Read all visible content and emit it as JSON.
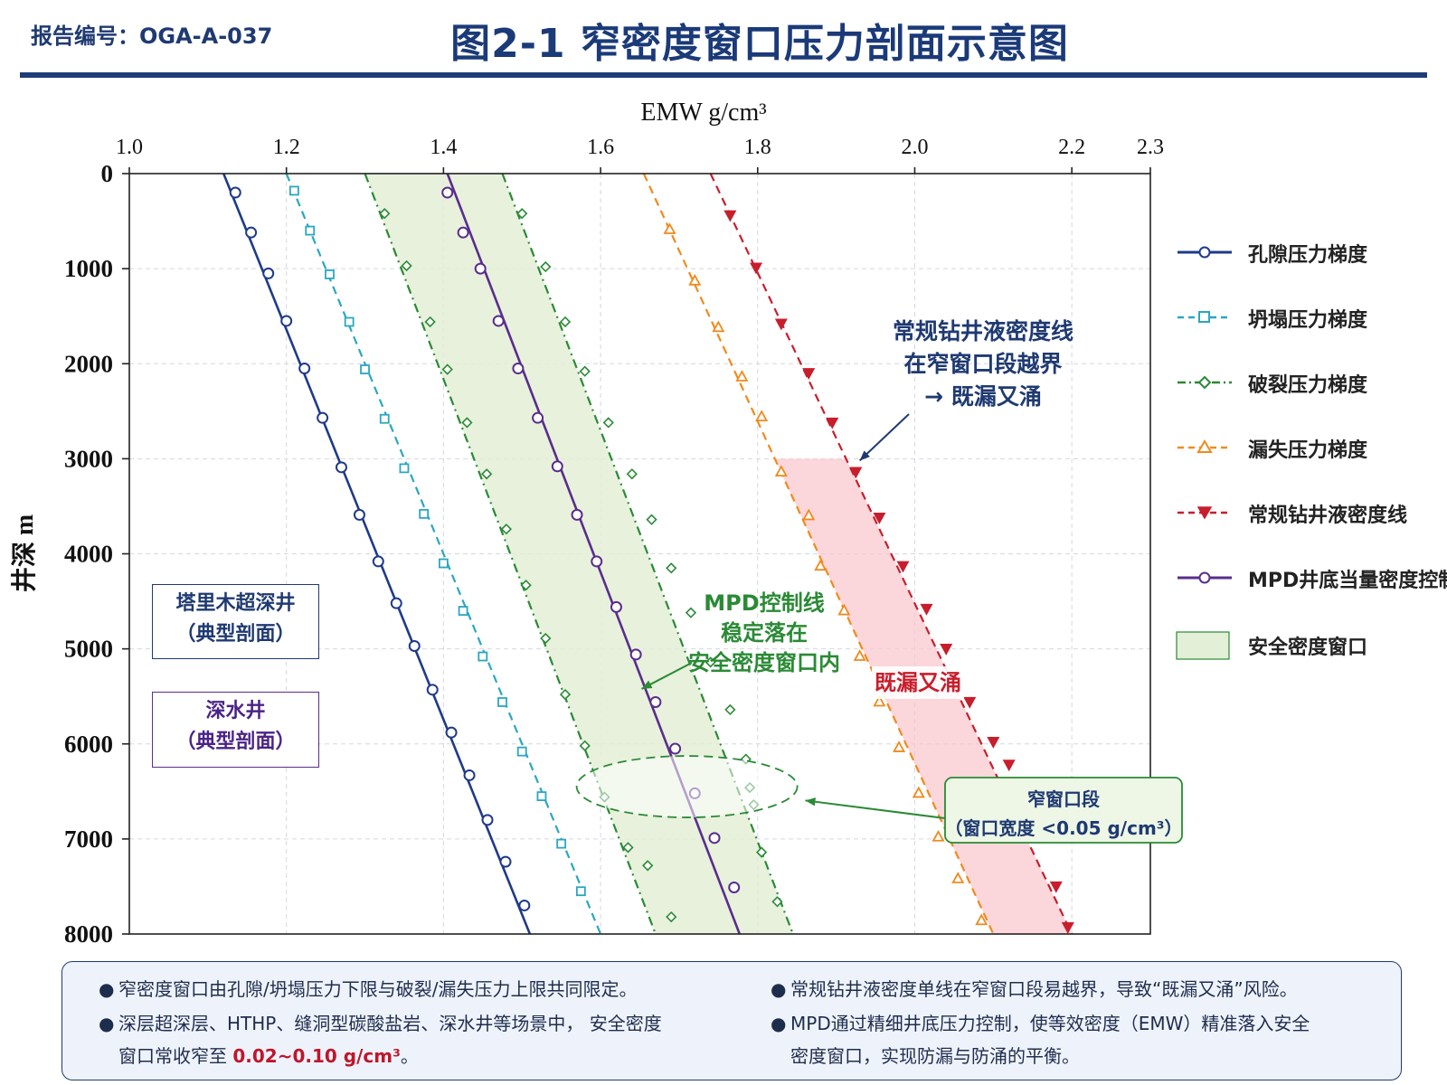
{
  "header": {
    "report_no": "报告编号：OGA-A-037",
    "title": "图2-1  窄密度窗口压力剖面示意图"
  },
  "chart_data": {
    "type": "line",
    "xlabel": "EMW g/cm³",
    "ylabel": "井深 m",
    "x_axis_position": "top",
    "xlim": [
      1.0,
      2.3
    ],
    "ylim": [
      0,
      8000
    ],
    "y_inverted": true,
    "xticks": [
      "1.0",
      "1.2",
      "1.4",
      "1.6",
      "1.8",
      "2.0",
      "2.2",
      "2.3"
    ],
    "xtick_values": [
      1.0,
      1.2,
      1.4,
      1.6,
      1.8,
      2.0,
      2.2,
      2.3
    ],
    "yticks": [
      "0",
      "1000",
      "2000",
      "3000",
      "4000",
      "5000",
      "6000",
      "7000",
      "8000"
    ],
    "ytick_values": [
      0,
      1000,
      2000,
      3000,
      4000,
      5000,
      6000,
      7000,
      8000
    ],
    "grid": true,
    "legend_position": "right",
    "series": [
      {
        "name": "孔隙压力梯度",
        "color": "#1f3a8a",
        "dash": "solid",
        "marker": "circle",
        "line": [
          [
            1.12,
            0
          ],
          [
            1.51,
            8000
          ]
        ],
        "markers": [
          [
            1.135,
            200
          ],
          [
            1.155,
            620
          ],
          [
            1.177,
            1050
          ],
          [
            1.2,
            1550
          ],
          [
            1.223,
            2050
          ],
          [
            1.246,
            2570
          ],
          [
            1.27,
            3090
          ],
          [
            1.293,
            3590
          ],
          [
            1.317,
            4080
          ],
          [
            1.34,
            4520
          ],
          [
            1.363,
            4970
          ],
          [
            1.386,
            5430
          ],
          [
            1.41,
            5880
          ],
          [
            1.433,
            6330
          ],
          [
            1.456,
            6800
          ],
          [
            1.479,
            7240
          ],
          [
            1.503,
            7700
          ]
        ]
      },
      {
        "name": "坍塌压力梯度",
        "color": "#2aa7c0",
        "dash": "dashed",
        "marker": "square",
        "line": [
          [
            1.2,
            0
          ],
          [
            1.6,
            8000
          ]
        ],
        "markers": [
          [
            1.21,
            180
          ],
          [
            1.23,
            600
          ],
          [
            1.255,
            1060
          ],
          [
            1.28,
            1560
          ],
          [
            1.3,
            2060
          ],
          [
            1.325,
            2580
          ],
          [
            1.35,
            3100
          ],
          [
            1.375,
            3580
          ],
          [
            1.4,
            4100
          ],
          [
            1.425,
            4600
          ],
          [
            1.45,
            5080
          ],
          [
            1.475,
            5560
          ],
          [
            1.5,
            6080
          ],
          [
            1.525,
            6550
          ],
          [
            1.55,
            7050
          ],
          [
            1.575,
            7550
          ]
        ]
      },
      {
        "name": "破裂压力梯度",
        "color": "#2a8a35",
        "dash": "dashdot",
        "marker": "diamond",
        "lines": [
          {
            "role": "lower",
            "points": [
              [
                1.3,
                0
              ],
              [
                1.67,
                8000
              ]
            ]
          },
          {
            "role": "upper",
            "points": [
              [
                1.475,
                0
              ],
              [
                1.845,
                8000
              ]
            ]
          }
        ],
        "markers": [
          [
            1.325,
            420
          ],
          [
            1.353,
            970
          ],
          [
            1.383,
            1560
          ],
          [
            1.405,
            2060
          ],
          [
            1.43,
            2620
          ],
          [
            1.455,
            3160
          ],
          [
            1.48,
            3740
          ],
          [
            1.505,
            4330
          ],
          [
            1.53,
            4890
          ],
          [
            1.555,
            5480
          ],
          [
            1.58,
            6020
          ],
          [
            1.605,
            6560
          ],
          [
            1.635,
            7090
          ],
          [
            1.66,
            7280
          ],
          [
            1.69,
            7820
          ],
          [
            1.5,
            420
          ],
          [
            1.53,
            980
          ],
          [
            1.555,
            1560
          ],
          [
            1.58,
            2080
          ],
          [
            1.61,
            2620
          ],
          [
            1.64,
            3160
          ],
          [
            1.665,
            3640
          ],
          [
            1.69,
            4150
          ],
          [
            1.715,
            4620
          ],
          [
            1.74,
            5140
          ],
          [
            1.765,
            5640
          ],
          [
            1.785,
            6160
          ],
          [
            1.79,
            6460
          ],
          [
            1.795,
            6640
          ],
          [
            1.805,
            7140
          ],
          [
            1.825,
            7660
          ]
        ]
      },
      {
        "name": "漏失压力梯度",
        "color": "#f08a1c",
        "dash": "dashed",
        "marker": "triangle-up",
        "line": [
          [
            1.655,
            0
          ],
          [
            2.1,
            8000
          ]
        ],
        "markers": [
          [
            1.688,
            590
          ],
          [
            1.72,
            1130
          ],
          [
            1.75,
            1620
          ],
          [
            1.78,
            2140
          ],
          [
            1.805,
            2560
          ],
          [
            1.83,
            3140
          ],
          [
            1.865,
            3600
          ],
          [
            1.88,
            4130
          ],
          [
            1.91,
            4600
          ],
          [
            1.93,
            5080
          ],
          [
            1.955,
            5560
          ],
          [
            1.98,
            6040
          ],
          [
            2.005,
            6520
          ],
          [
            2.03,
            6980
          ],
          [
            2.055,
            7420
          ],
          [
            2.085,
            7860
          ]
        ]
      },
      {
        "name": "常规钻井液密度线",
        "color": "#c81e2c",
        "dash": "dashed",
        "marker": "triangle-down",
        "line": [
          [
            1.74,
            0
          ],
          [
            2.2,
            8000
          ]
        ],
        "markers": [
          [
            1.765,
            440
          ],
          [
            1.798,
            990
          ],
          [
            1.83,
            1580
          ],
          [
            1.865,
            2100
          ],
          [
            1.895,
            2620
          ],
          [
            1.925,
            3140
          ],
          [
            1.955,
            3620
          ],
          [
            1.985,
            4130
          ],
          [
            2.015,
            4580
          ],
          [
            2.04,
            5000
          ],
          [
            2.07,
            5560
          ],
          [
            2.1,
            5980
          ],
          [
            2.12,
            6220
          ],
          [
            2.18,
            7500
          ],
          [
            2.195,
            7930
          ]
        ]
      },
      {
        "name": "MPD井底当量密度控制线",
        "color": "#5a2d8c",
        "dash": "solid",
        "marker": "circle",
        "line": [
          [
            1.405,
            0
          ],
          [
            1.777,
            8000
          ]
        ],
        "markers": [
          [
            1.405,
            200
          ],
          [
            1.425,
            620
          ],
          [
            1.447,
            1000
          ],
          [
            1.47,
            1550
          ],
          [
            1.495,
            2050
          ],
          [
            1.52,
            2570
          ],
          [
            1.545,
            3080
          ],
          [
            1.57,
            3590
          ],
          [
            1.595,
            4080
          ],
          [
            1.62,
            4560
          ],
          [
            1.645,
            5060
          ],
          [
            1.67,
            5560
          ],
          [
            1.695,
            6050
          ],
          [
            1.72,
            6520
          ],
          [
            1.745,
            6990
          ],
          [
            1.77,
            7510
          ]
        ]
      },
      {
        "name": "安全密度窗口",
        "color": "#e3efd6",
        "type": "band",
        "left": [
          [
            1.3,
            0
          ],
          [
            1.67,
            8000
          ]
        ],
        "right": [
          [
            1.475,
            0
          ],
          [
            1.845,
            8000
          ]
        ]
      }
    ],
    "annotations": [
      {
        "text": "常规钻井液密度线\n在窄窗口段越界\n→ 既漏又涌",
        "color": "#1f3a72",
        "target": [
          1.93,
          3000
        ]
      },
      {
        "text": "MPD控制线\n稳定落在\n安全密度窗口内",
        "color": "#2a8a35",
        "target": [
          1.65,
          5450
        ]
      },
      {
        "text": "既漏又涌",
        "color": "#c81e2c"
      },
      {
        "text": "窄窗口段\n（窗口宽度 <0.05 g/cm³）",
        "color": "#1f3a72",
        "target": [
          1.78,
          6500
        ]
      }
    ],
    "highlight_band": {
      "color": "#f9c8ce",
      "from_depth": 3000,
      "to_depth": 8000
    }
  },
  "boxes": {
    "tarim": "塔里木超深井\n（典型剖面）",
    "deepwater": "深水井\n（典型剖面）"
  },
  "notes": {
    "n1": "窄密度窗口由孔隙/坍塌压力下限与破裂/漏失压力上限共同限定。",
    "n2a": "深层超深层、HTHP、缝洞型碳酸盐岩、深水井等场景中，  安全密度",
    "n2b": "窗口常收窄至  ",
    "n2_red": "0.02~0.10 g/cm³",
    "n2c": "。",
    "n3": "常规钻井液密度单线在窄窗口段易越界，导致“既漏又涌”风险。",
    "n4a": "MPD通过精细井底压力控制，使等效密度（EMW）精准落入安全",
    "n4b": "密度窗口，实现防漏与防涌的平衡。",
    "bullet": "●"
  }
}
